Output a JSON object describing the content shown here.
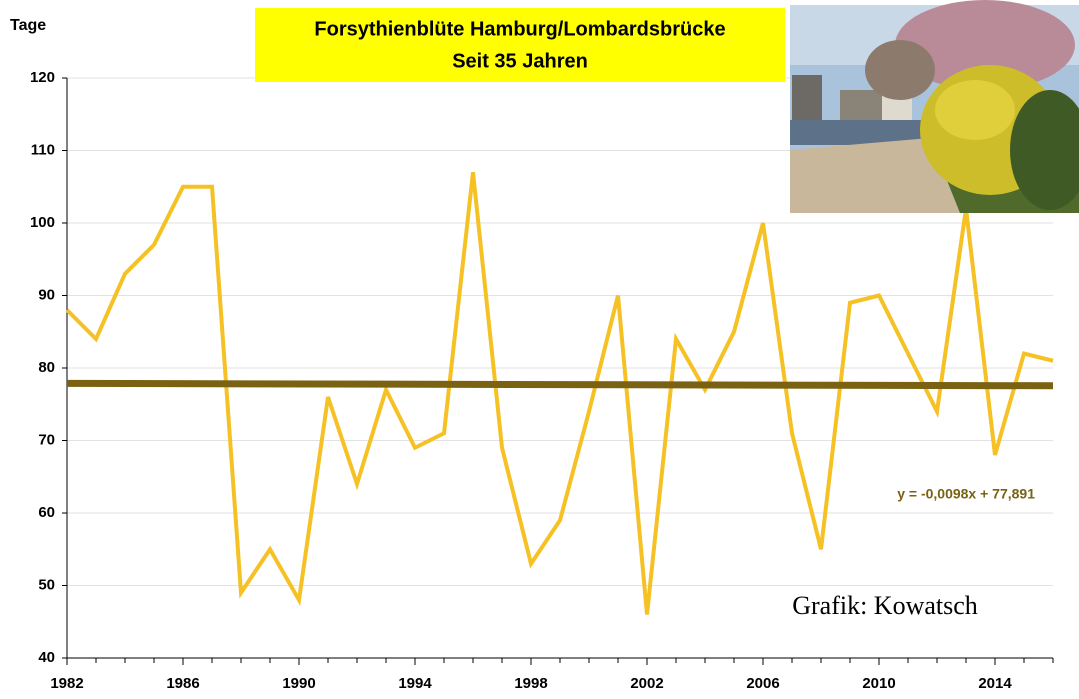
{
  "chart_data": {
    "type": "line",
    "title": "Forsythienblüte Hamburg/Lombardsbrücke",
    "subtitle": "Seit 35 Jahren",
    "y_label": "Tage",
    "credit": "Grafik: Kowatsch",
    "x": [
      1982,
      1983,
      1984,
      1985,
      1986,
      1987,
      1988,
      1989,
      1990,
      1991,
      1992,
      1993,
      1994,
      1995,
      1996,
      1997,
      1998,
      1999,
      2000,
      2001,
      2002,
      2003,
      2004,
      2005,
      2006,
      2007,
      2008,
      2009,
      2010,
      2011,
      2012,
      2013,
      2014,
      2015,
      2016
    ],
    "series": [
      {
        "color": "#f6c124",
        "values": [
          88,
          84,
          93,
          97,
          105,
          105,
          49,
          55,
          48,
          76,
          64,
          77,
          69,
          71,
          107,
          69,
          53,
          59,
          74,
          90,
          46,
          84,
          77,
          85,
          100,
          71,
          55,
          89,
          90,
          82,
          74,
          102,
          68,
          82,
          81
        ]
      }
    ],
    "trend": {
      "label": "y = -0,0098x + 77,891",
      "slope": -0.0098,
      "intercept": 77.891,
      "color": "#7a6212"
    },
    "xlim": [
      1982,
      2016
    ],
    "xticks": [
      1982,
      1986,
      1990,
      1994,
      1998,
      2002,
      2006,
      2010,
      2014
    ],
    "ylim": [
      40,
      120
    ],
    "yticks": [
      40,
      50,
      60,
      70,
      80,
      90,
      100,
      110,
      120
    ],
    "grid": true
  }
}
